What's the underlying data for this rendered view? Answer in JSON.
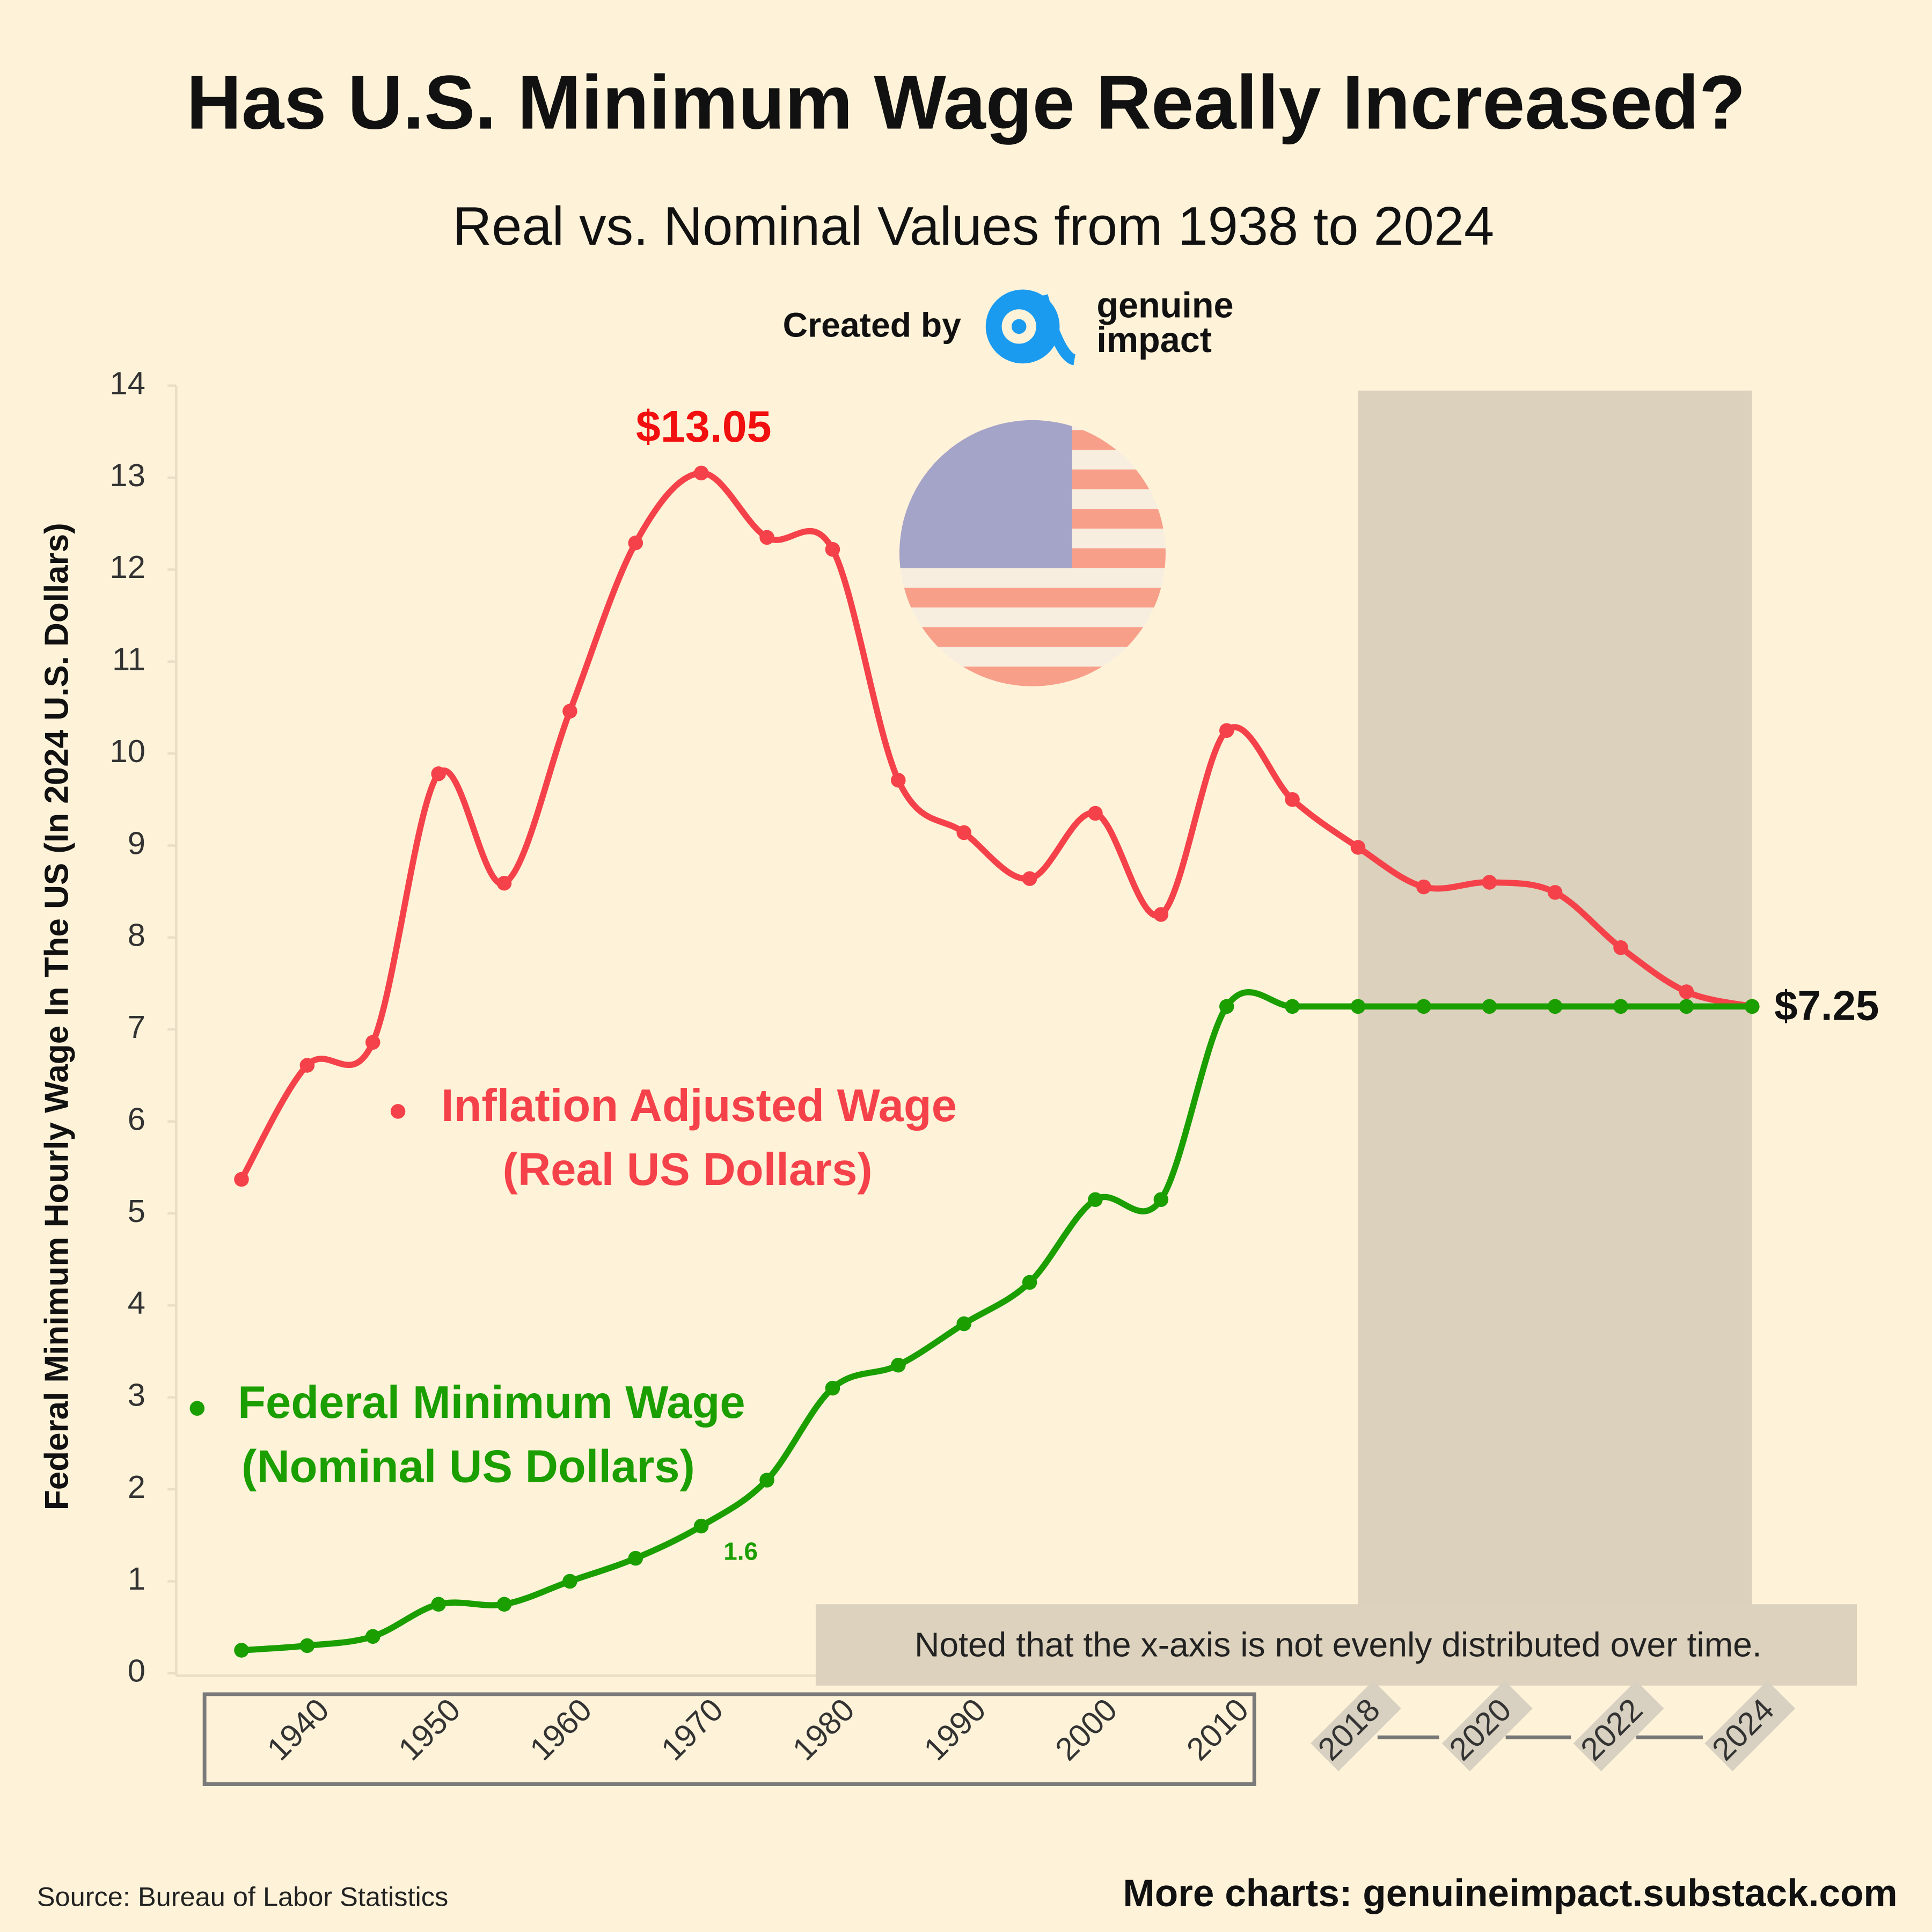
{
  "chart_data": {
    "type": "line",
    "title": "Has  U.S. Minimum Wage Really Increased?",
    "subtitle": "Real vs. Nominal Values from 1938 to 2024",
    "credit": "Created by",
    "brand": [
      "genuine",
      "impact"
    ],
    "ylabel": "Federal  Minimum Hourly Wage In The US (In 2024 U.S. Dollars)",
    "note": "Noted that the x-axis is not evenly distributed over time.",
    "source": "Source: Bureau of Labor Statistics",
    "footer": "More charts: genuineimpact.substack.com",
    "categories": [
      null,
      "1940",
      null,
      "1950",
      null,
      "1960",
      null,
      "1970",
      null,
      "1980",
      null,
      "1990",
      null,
      "2000",
      null,
      "2010",
      null,
      "2018",
      null,
      "2020",
      null,
      "2022",
      null,
      "2024"
    ],
    "series": [
      {
        "name": "Inflation Adjusted Wage",
        "subname": "(Real US Dollars)",
        "color": "#f5424a",
        "values": [
          5.37,
          6.61,
          6.86,
          9.78,
          8.59,
          10.46,
          12.29,
          13.05,
          12.35,
          12.22,
          9.71,
          9.14,
          8.64,
          9.35,
          8.25,
          10.25,
          9.5,
          8.98,
          8.55,
          8.6,
          8.49,
          7.89,
          7.41,
          7.25
        ],
        "value_labels": [
          null,
          null,
          null,
          null,
          null,
          null,
          null,
          "$13.05",
          null,
          null,
          null,
          null,
          null,
          null,
          null,
          null,
          null,
          null,
          null,
          null,
          null,
          null,
          null,
          "$7.25"
        ]
      },
      {
        "name": "Federal Minimum Wage",
        "subname": "(Nominal US Dollars)",
        "color": "#1a9e00",
        "values": [
          0.25,
          0.3,
          0.4,
          0.75,
          0.75,
          1.0,
          1.25,
          1.6,
          2.1,
          3.1,
          3.35,
          3.8,
          4.25,
          5.15,
          5.15,
          7.25,
          7.25,
          7.25,
          7.25,
          7.25,
          7.25,
          7.25,
          7.25,
          7.25
        ],
        "value_labels": [
          null,
          null,
          null,
          null,
          null,
          null,
          null,
          "1.6",
          null,
          null,
          null,
          null,
          null,
          null,
          null,
          null,
          null,
          null,
          null,
          null,
          null,
          null,
          null,
          null
        ]
      }
    ],
    "ylim": [
      0,
      14
    ],
    "yticks": [
      0,
      1,
      2,
      3,
      4,
      5,
      6,
      7,
      8,
      9,
      10,
      11,
      12,
      13,
      14
    ],
    "grid": false
  }
}
